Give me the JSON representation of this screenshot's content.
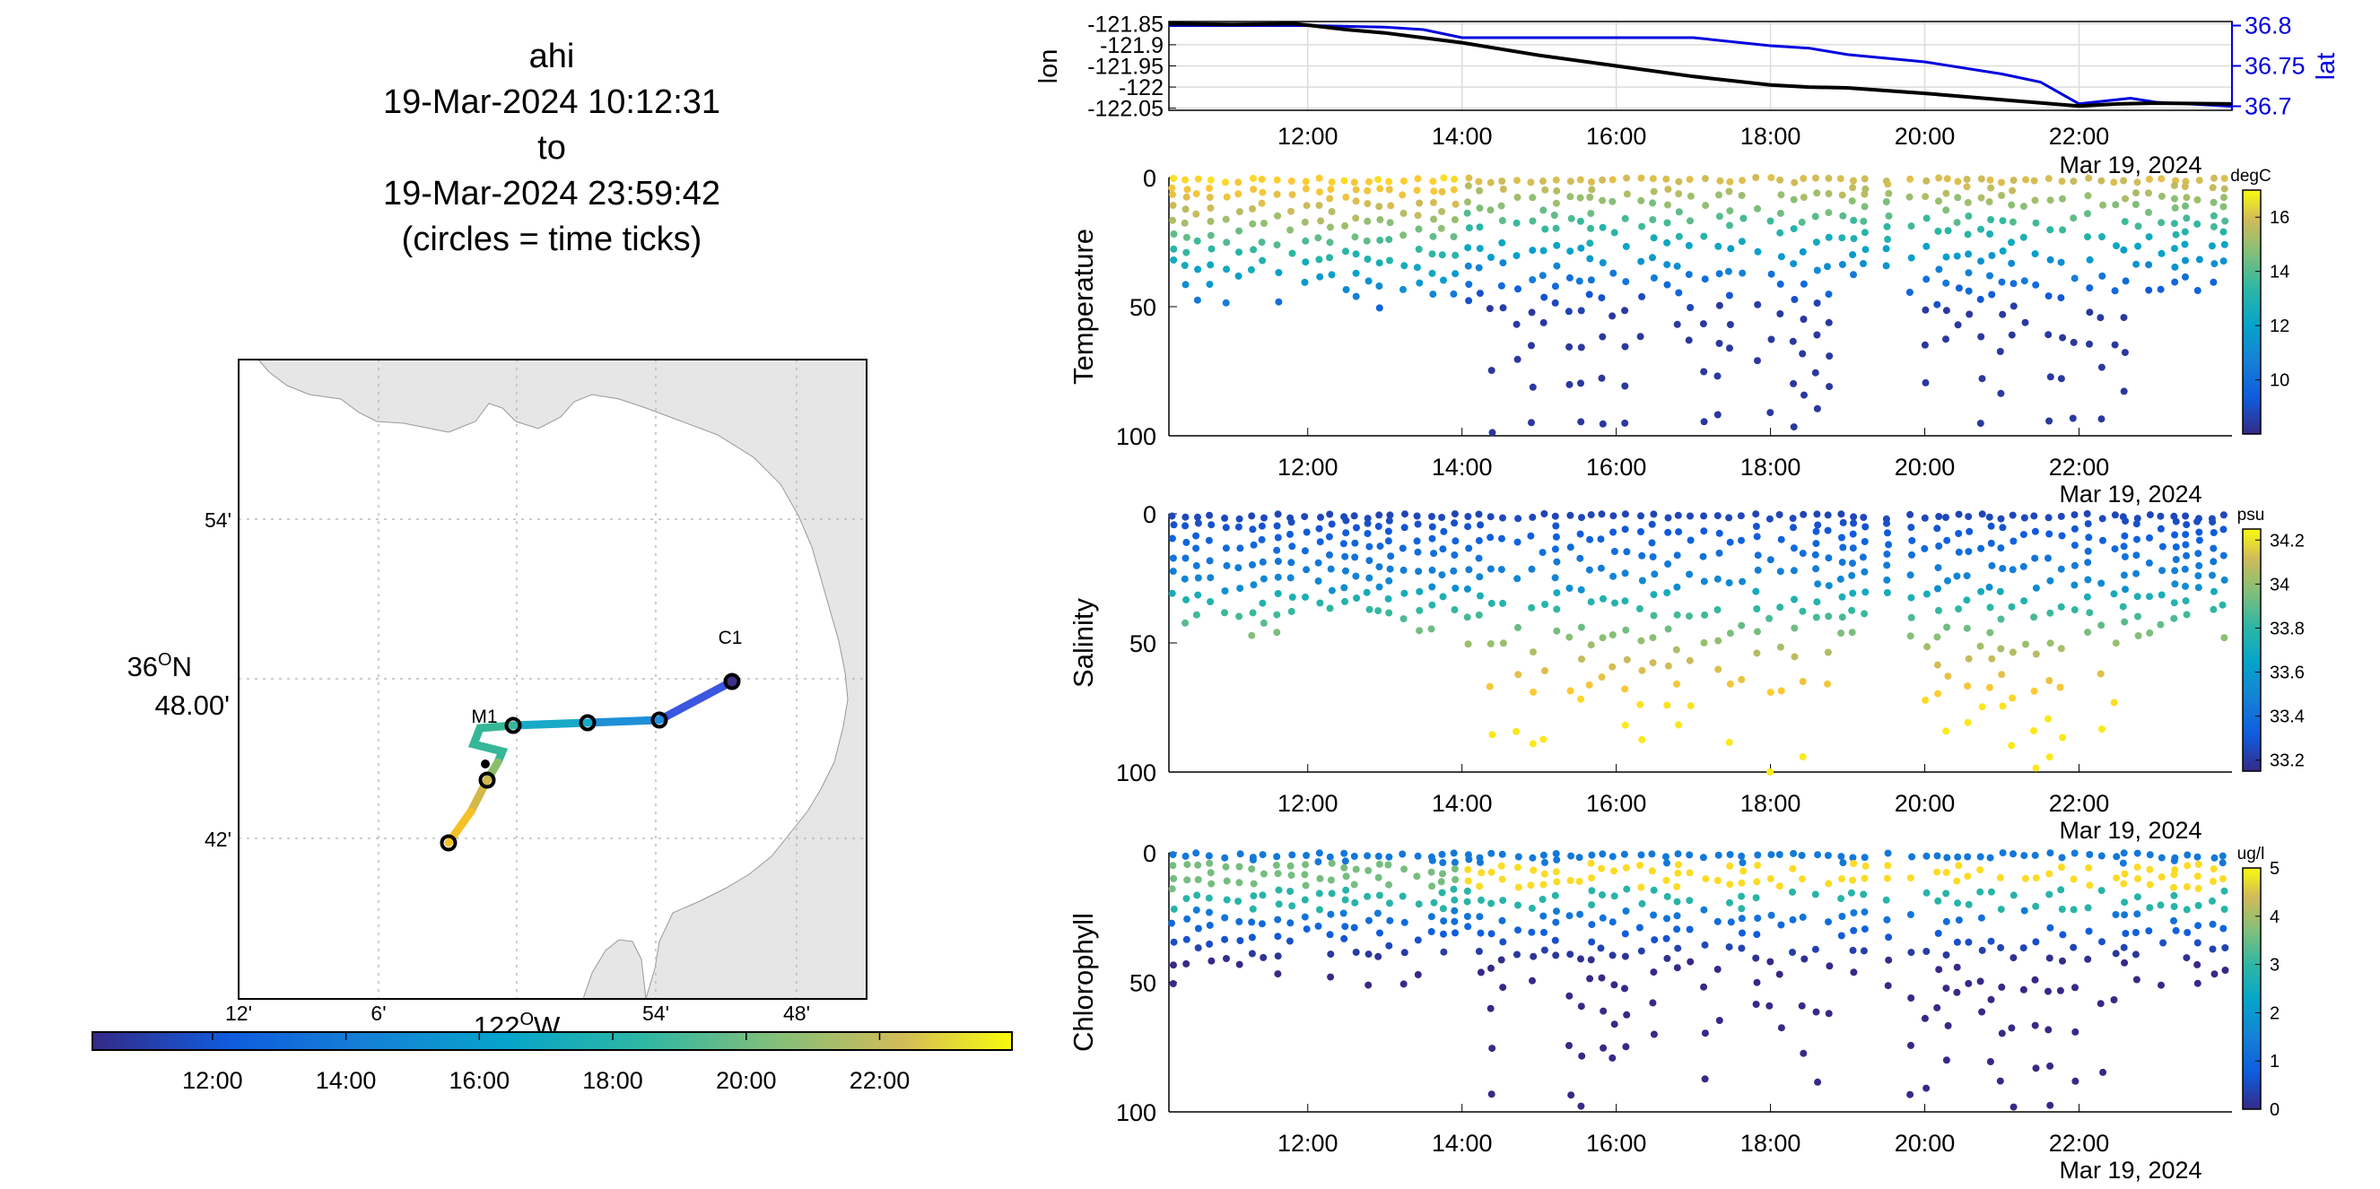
{
  "figure": {
    "title_lines": [
      "ahi",
      "19-Mar-2024 10:12:31",
      "to",
      "19-Mar-2024 23:59:42",
      "(circles = time ticks)"
    ]
  },
  "map": {
    "lat_ticks": [
      "54'",
      "36°N 48.00'",
      "42'"
    ],
    "lat_tick_degree": "36",
    "lat_tick_minutes": "48.00'",
    "lon_ticks": [
      "12'",
      "6'",
      "122°W",
      "54'",
      "48'"
    ],
    "lon_tick_degree": "122",
    "station_labels": [
      "C1",
      "M1"
    ],
    "colorbar_ticks": [
      "12:00",
      "14:00",
      "16:00",
      "18:00",
      "20:00",
      "22:00"
    ]
  },
  "colors": {
    "land": "#e6e6e6",
    "lon_line": "#000000",
    "lat_line": "#0000dd",
    "grid": "#d9d9d9"
  },
  "chart_data": [
    {
      "type": "line",
      "panel": "lon/lat time series",
      "ylabel": "lon",
      "y2label": "lat",
      "x_ticks": [
        "12:00",
        "14:00",
        "16:00",
        "18:00",
        "20:00",
        "22:00"
      ],
      "x_date_label": "Mar 19, 2024",
      "y_ticks": [
        "-121.85",
        "-121.9",
        "-121.95",
        "-122",
        "-122.05"
      ],
      "y2_ticks": [
        "36.8",
        "36.75",
        "36.7"
      ],
      "ylim": [
        -122.055,
        -121.845
      ],
      "y2lim": [
        36.695,
        36.805
      ],
      "series": [
        {
          "name": "lon",
          "x": [
            "10:12",
            "11:00",
            "11:50",
            "12:30",
            "13:00",
            "14:00",
            "15:00",
            "16:00",
            "17:00",
            "18:00",
            "18:30",
            "19:00",
            "20:00",
            "21:00",
            "22:00",
            "22:30",
            "23:00",
            "23:59"
          ],
          "y": [
            -121.85,
            -121.852,
            -121.85,
            -121.864,
            -121.872,
            -121.895,
            -121.925,
            -121.95,
            -121.975,
            -121.995,
            -122.0,
            -122.002,
            -122.015,
            -122.03,
            -122.045,
            -122.04,
            -122.038,
            -122.04
          ]
        },
        {
          "name": "lat",
          "x": [
            "10:12",
            "12:00",
            "13:00",
            "13:30",
            "14:00",
            "16:00",
            "17:00",
            "18:00",
            "18:30",
            "19:00",
            "20:00",
            "21:00",
            "21:30",
            "22:00",
            "22:40",
            "23:00",
            "23:59"
          ],
          "y": [
            36.8,
            36.8,
            36.798,
            36.795,
            36.785,
            36.785,
            36.785,
            36.775,
            36.772,
            36.764,
            36.755,
            36.74,
            36.73,
            36.703,
            36.71,
            36.705,
            36.7
          ]
        }
      ]
    },
    {
      "type": "scatter",
      "panel": "Temperature",
      "ylabel": "Temperature",
      "ylim": [
        100,
        0
      ],
      "y_ticks": [
        "0",
        "50",
        "100"
      ],
      "x_ticks": [
        "12:00",
        "14:00",
        "16:00",
        "18:00",
        "20:00",
        "22:00"
      ],
      "x_date_label": "Mar 19, 2024",
      "colorbar": {
        "label": "degC",
        "ticks": [
          "16",
          "14",
          "12",
          "10"
        ],
        "range": [
          8,
          17
        ]
      },
      "note": "color encodes temperature; values decrease with depth"
    },
    {
      "type": "scatter",
      "panel": "Salinity",
      "ylabel": "Salinity",
      "ylim": [
        100,
        0
      ],
      "y_ticks": [
        "0",
        "50",
        "100"
      ],
      "x_ticks": [
        "12:00",
        "14:00",
        "16:00",
        "18:00",
        "20:00",
        "22:00"
      ],
      "x_date_label": "Mar 19, 2024",
      "colorbar": {
        "label": "psu",
        "ticks": [
          "34.2",
          "34",
          "33.8",
          "33.6",
          "33.4",
          "33.2"
        ],
        "range": [
          33.15,
          34.25
        ]
      }
    },
    {
      "type": "scatter",
      "panel": "Chlorophyll",
      "ylabel": "Chlorophyll",
      "ylim": [
        100,
        0
      ],
      "y_ticks": [
        "0",
        "50",
        "100"
      ],
      "x_ticks": [
        "12:00",
        "14:00",
        "16:00",
        "18:00",
        "20:00",
        "22:00"
      ],
      "x_date_label": "Mar 19, 2024",
      "colorbar": {
        "label": "ug/l",
        "ticks": [
          "5",
          "4",
          "3",
          "2",
          "1",
          "0"
        ],
        "range": [
          0,
          5
        ]
      }
    }
  ]
}
